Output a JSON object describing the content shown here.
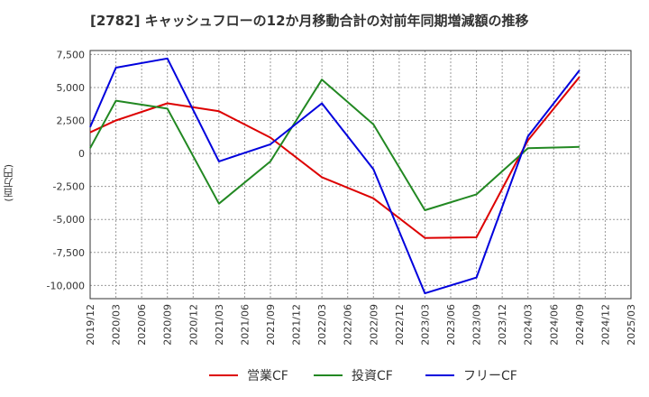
{
  "chart_data": {
    "type": "line",
    "title": "[2782]  キャッシュフローの12か月移動合計の対前年同期増減額の推移",
    "ylabel": "(百万円)",
    "xlabel": "",
    "categories": [
      "2019/12",
      "2020/03",
      "2020/06",
      "2020/09",
      "2020/12",
      "2021/03",
      "2021/06",
      "2021/09",
      "2021/12",
      "2022/03",
      "2022/06",
      "2022/09",
      "2022/12",
      "2023/03",
      "2023/06",
      "2023/09",
      "2023/12",
      "2024/03",
      "2024/06",
      "2024/09",
      "2024/12",
      "2025/03"
    ],
    "ylim": [
      -11000,
      7800
    ],
    "yticks": [
      7500,
      5000,
      2500,
      0,
      -2500,
      -5000,
      -7500,
      -10000
    ],
    "ytick_labels": [
      "7,500",
      "5,000",
      "2,500",
      "0",
      "-2,500",
      "-5,000",
      "-7,500",
      "-10,000"
    ],
    "grid": true,
    "legend_position": "bottom",
    "series": [
      {
        "name": "営業CF",
        "color": "#dd0000",
        "values": [
          1600,
          2500,
          null,
          3800,
          null,
          3200,
          null,
          1200,
          null,
          -1800,
          null,
          -3400,
          null,
          -6400,
          null,
          -6350,
          null,
          1000,
          null,
          5800,
          null,
          null
        ]
      },
      {
        "name": "投資CF",
        "color": "#228822",
        "values": [
          400,
          4000,
          null,
          3400,
          null,
          -3800,
          null,
          -600,
          null,
          5600,
          null,
          2200,
          null,
          -4300,
          null,
          -3100,
          null,
          400,
          null,
          500,
          null,
          null
        ]
      },
      {
        "name": "フリーCF",
        "color": "#0000dd",
        "values": [
          2000,
          6500,
          null,
          7200,
          null,
          -600,
          null,
          700,
          null,
          3800,
          null,
          -1200,
          null,
          -10600,
          null,
          -9400,
          null,
          1300,
          null,
          6300,
          null,
          null
        ]
      }
    ]
  }
}
